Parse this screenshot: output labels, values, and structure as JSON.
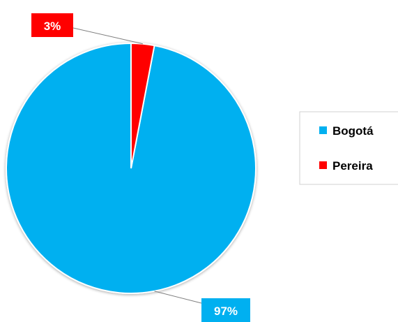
{
  "chart_data": {
    "type": "pie",
    "categories": [
      "Bogotá",
      "Pereira"
    ],
    "values": [
      97,
      3
    ],
    "value_labels": [
      "97%",
      "3%"
    ],
    "colors": [
      "#00b0f0",
      "#ff0000"
    ],
    "slice_border_color": "#ffffff",
    "legend": {
      "placement": "right",
      "border_color": "#d0d0d0"
    }
  }
}
